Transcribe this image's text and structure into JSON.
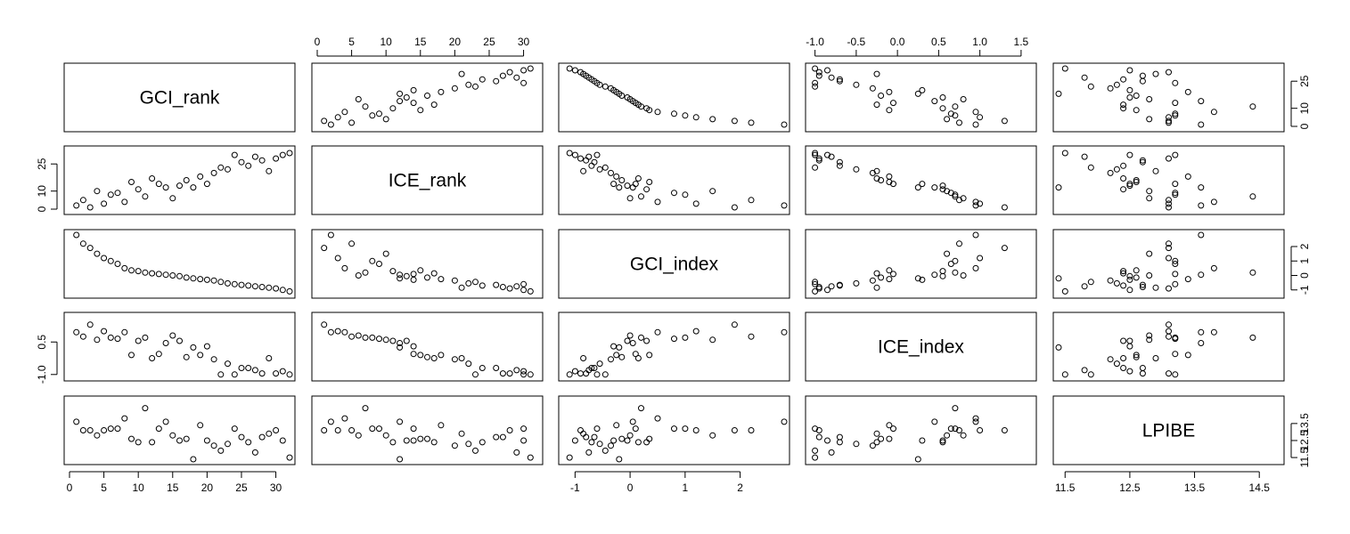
{
  "chart_data": {
    "type": "scatter",
    "subtype": "scatterplot-matrix",
    "variables": [
      "GCI_rank",
      "ICE_rank",
      "GCI_index",
      "ICE_index",
      "LPIBE"
    ],
    "marker": "open-circle",
    "axes": {
      "GCI_rank": {
        "range": [
          0,
          32
        ],
        "ticks": [
          0,
          5,
          10,
          15,
          20,
          25,
          30
        ],
        "labels": [
          "0",
          "5",
          "10",
          "15",
          "20",
          "25",
          "30"
        ]
      },
      "ICE_rank": {
        "range": [
          0,
          32
        ],
        "ticks": [
          0,
          10,
          25
        ],
        "labels": [
          "0",
          "10",
          "25"
        ]
      },
      "GCI_index": {
        "range": [
          -1.2,
          2.8
        ],
        "ticks": [
          -1,
          0,
          1,
          2
        ],
        "labels": [
          "-1",
          "0",
          "1",
          "2"
        ]
      },
      "ICE_index": {
        "range": [
          -1.05,
          1.62
        ],
        "ticks": [
          -1.0,
          -0.5,
          0.0,
          0.5,
          1.0,
          1.5
        ],
        "labels": [
          "-1.0",
          "-0.5",
          "0.0",
          "0.5",
          "1.0",
          "1.5"
        ]
      },
      "ICE_index_left": {
        "ticks": [
          -1.0,
          0.5
        ],
        "labels": [
          "-1.0",
          "0.5"
        ]
      },
      "LPIBE": {
        "range": [
          11.4,
          14.8
        ],
        "ticks": [
          11.5,
          12.5,
          13.5,
          14.5
        ],
        "labels": [
          "11.5",
          "12.5",
          "13.5",
          "14.5"
        ]
      },
      "LPIBE_right": {
        "ticks": [
          11.5,
          12.5,
          13.5
        ],
        "labels": [
          "11.5",
          "12.5",
          "13.5"
        ]
      }
    },
    "observations": [
      {
        "GCI_rank": 1,
        "ICE_rank": 2,
        "GCI_index": 2.8,
        "ICE_index": 0.95,
        "LPIBE": 13.6
      },
      {
        "GCI_rank": 2,
        "ICE_rank": 5,
        "GCI_index": 2.2,
        "ICE_index": 0.75,
        "LPIBE": 13.1
      },
      {
        "GCI_rank": 3,
        "ICE_rank": 1,
        "GCI_index": 1.9,
        "ICE_index": 1.3,
        "LPIBE": 13.1
      },
      {
        "GCI_rank": 4,
        "ICE_rank": 10,
        "GCI_index": 1.5,
        "ICE_index": 0.6,
        "LPIBE": 12.8
      },
      {
        "GCI_rank": 5,
        "ICE_rank": 3,
        "GCI_index": 1.2,
        "ICE_index": 1.0,
        "LPIBE": 13.1
      },
      {
        "GCI_rank": 6,
        "ICE_rank": 8,
        "GCI_index": 1.0,
        "ICE_index": 0.7,
        "LPIBE": 13.2
      },
      {
        "GCI_rank": 7,
        "ICE_rank": 9,
        "GCI_index": 0.8,
        "ICE_index": 0.65,
        "LPIBE": 13.2
      },
      {
        "GCI_rank": 8,
        "ICE_rank": 4,
        "GCI_index": 0.5,
        "ICE_index": 0.95,
        "LPIBE": 13.8
      },
      {
        "GCI_rank": 9,
        "ICE_rank": 15,
        "GCI_index": 0.35,
        "ICE_index": -0.1,
        "LPIBE": 12.6
      },
      {
        "GCI_rank": 10,
        "ICE_rank": 11,
        "GCI_index": 0.3,
        "ICE_index": 0.55,
        "LPIBE": 12.4
      },
      {
        "GCI_rank": 11,
        "ICE_rank": 7,
        "GCI_index": 0.2,
        "ICE_index": 0.7,
        "LPIBE": 14.4
      },
      {
        "GCI_rank": 12,
        "ICE_rank": 17,
        "GCI_index": 0.15,
        "ICE_index": -0.25,
        "LPIBE": 12.4
      },
      {
        "GCI_rank": 13,
        "ICE_rank": 14,
        "GCI_index": 0.1,
        "ICE_index": -0.05,
        "LPIBE": 13.2
      },
      {
        "GCI_rank": 14,
        "ICE_rank": 12,
        "GCI_index": 0.05,
        "ICE_index": 0.45,
        "LPIBE": 13.6
      },
      {
        "GCI_rank": 15,
        "ICE_rank": 6,
        "GCI_index": 0.0,
        "ICE_index": 0.8,
        "LPIBE": 12.8
      },
      {
        "GCI_rank": 16,
        "ICE_rank": 13,
        "GCI_index": -0.05,
        "ICE_index": 0.55,
        "LPIBE": 12.5
      },
      {
        "GCI_rank": 17,
        "ICE_rank": 16,
        "GCI_index": -0.15,
        "ICE_index": -0.2,
        "LPIBE": 12.6
      },
      {
        "GCI_rank": 18,
        "ICE_rank": 12,
        "GCI_index": -0.2,
        "ICE_index": 0.25,
        "LPIBE": 11.4
      },
      {
        "GCI_rank": 19,
        "ICE_rank": 18,
        "GCI_index": -0.25,
        "ICE_index": -0.1,
        "LPIBE": 13.4
      },
      {
        "GCI_rank": 20,
        "ICE_rank": 14,
        "GCI_index": -0.3,
        "ICE_index": 0.3,
        "LPIBE": 12.5
      },
      {
        "GCI_rank": 21,
        "ICE_rank": 20,
        "GCI_index": -0.35,
        "ICE_index": -0.3,
        "LPIBE": 12.2
      },
      {
        "GCI_rank": 22,
        "ICE_rank": 23,
        "GCI_index": -0.45,
        "ICE_index": -1.0,
        "LPIBE": 11.9
      },
      {
        "GCI_rank": 23,
        "ICE_rank": 22,
        "GCI_index": -0.55,
        "ICE_index": -0.5,
        "LPIBE": 12.3
      },
      {
        "GCI_rank": 24,
        "ICE_rank": 30,
        "GCI_index": -0.6,
        "ICE_index": -1.0,
        "LPIBE": 13.2
      },
      {
        "GCI_rank": 25,
        "ICE_rank": 26,
        "GCI_index": -0.65,
        "ICE_index": -0.7,
        "LPIBE": 12.7
      },
      {
        "GCI_rank": 26,
        "ICE_rank": 24,
        "GCI_index": -0.7,
        "ICE_index": -0.7,
        "LPIBE": 12.4
      },
      {
        "GCI_rank": 27,
        "ICE_rank": 29,
        "GCI_index": -0.75,
        "ICE_index": -0.8,
        "LPIBE": 11.8
      },
      {
        "GCI_rank": 28,
        "ICE_rank": 27,
        "GCI_index": -0.8,
        "ICE_index": -0.95,
        "LPIBE": 12.7
      },
      {
        "GCI_rank": 29,
        "ICE_rank": 21,
        "GCI_index": -0.85,
        "ICE_index": -0.25,
        "LPIBE": 12.9
      },
      {
        "GCI_rank": 30,
        "ICE_rank": 28,
        "GCI_index": -0.9,
        "ICE_index": -0.95,
        "LPIBE": 13.1
      },
      {
        "GCI_rank": 31,
        "ICE_rank": 30,
        "GCI_index": -1.0,
        "ICE_index": -0.85,
        "LPIBE": 12.5
      },
      {
        "GCI_rank": 32,
        "ICE_rank": 31,
        "GCI_index": -1.1,
        "ICE_index": -1.0,
        "LPIBE": 11.5
      }
    ]
  }
}
